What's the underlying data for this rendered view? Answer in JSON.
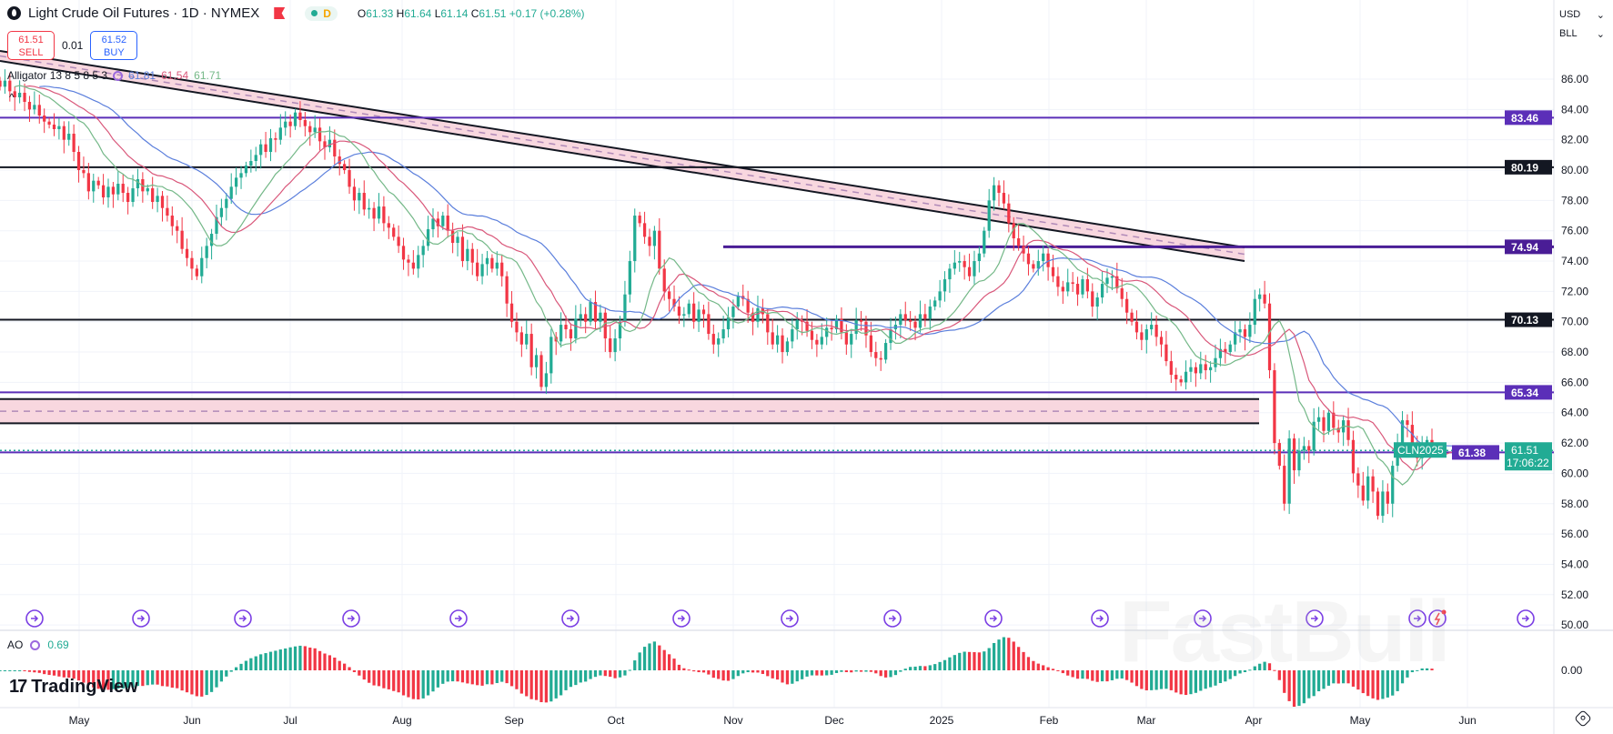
{
  "header": {
    "title": "Light Crude Oil Futures · 1D · NYMEX",
    "session_letter": "D",
    "ohlc": {
      "o_label": "O",
      "o": "61.33",
      "h_label": "H",
      "h": "61.64",
      "l_label": "L",
      "l": "61.14",
      "c_label": "C",
      "c": "61.51",
      "change": "+0.17 (+0.28%)"
    }
  },
  "trade": {
    "sell_price": "61.51",
    "sell_label": "SELL",
    "spread": "0.01",
    "buy_price": "61.52",
    "buy_label": "BUY"
  },
  "indicator": {
    "name": "Alligator 13 8 5 8 5 3",
    "jaw": "61.81",
    "teeth": "61.54",
    "lips": "61.71",
    "collapse_icon": "^"
  },
  "ao": {
    "name": "AO",
    "value": "0.69",
    "zero_label": "0.00"
  },
  "currency": {
    "currency": "USD",
    "unit": "BLL"
  },
  "branding": {
    "logo": "TradingView",
    "watermark": "FastBull"
  },
  "colors": {
    "up": "#22ab94",
    "down": "#f23645",
    "jaw": "#5b7fdc",
    "teeth": "#d9577a",
    "lips": "#74b888",
    "purple": "#4a1d96",
    "black": "#131722",
    "zone": "#f8d7df"
  },
  "chart_data": {
    "type": "candlestick",
    "symbol": "CLN2025",
    "ylim": [
      49,
      87
    ],
    "price_ticks": [
      "86.00",
      "84.00",
      "82.00",
      "80.00",
      "78.00",
      "76.00",
      "74.00",
      "72.00",
      "70.00",
      "68.00",
      "66.00",
      "64.00",
      "62.00",
      "60.00",
      "58.00",
      "56.00",
      "54.00",
      "52.00",
      "50.00"
    ],
    "x_tick_labels": [
      "May",
      "Jun",
      "Jul",
      "Aug",
      "Sep",
      "Oct",
      "Nov",
      "Dec",
      "2025",
      "Feb",
      "Mar",
      "Apr",
      "May",
      "Jun"
    ],
    "closes": [
      85.5,
      85.9,
      85.2,
      84.8,
      85.1,
      84.5,
      84.0,
      84.3,
      83.6,
      83.2,
      83.0,
      82.7,
      82.9,
      82.0,
      82.4,
      81.2,
      80.0,
      79.8,
      78.6,
      79.3,
      79.0,
      78.2,
      78.9,
      78.4,
      79.1,
      78.5,
      77.9,
      78.8,
      79.4,
      78.6,
      78.8,
      77.9,
      78.3,
      77.5,
      77.0,
      76.3,
      76.0,
      74.8,
      74.2,
      73.5,
      73.0,
      74.2,
      75.0,
      75.8,
      76.9,
      77.5,
      78.1,
      78.9,
      79.5,
      79.8,
      80.3,
      80.6,
      81.0,
      81.7,
      81.2,
      82.1,
      82.0,
      82.8,
      83.2,
      82.9,
      83.8,
      83.3,
      82.9,
      82.5,
      82.8,
      81.9,
      81.5,
      82.0,
      80.9,
      80.4,
      80.0,
      78.9,
      78.0,
      78.5,
      77.4,
      77.5,
      76.8,
      77.6,
      76.5,
      76.2,
      75.6,
      75.0,
      74.1,
      73.9,
      73.5,
      74.4,
      75.0,
      76.1,
      76.8,
      76.3,
      77.0,
      76.0,
      75.2,
      75.6,
      74.0,
      74.8,
      73.9,
      73.0,
      73.8,
      74.2,
      73.5,
      73.9,
      73.0,
      71.2,
      70.0,
      69.3,
      68.5,
      69.2,
      67.0,
      67.8,
      65.7,
      66.6,
      69.0,
      68.7,
      69.8,
      69.5,
      68.9,
      70.2,
      70.5,
      70.0,
      71.3,
      70.0,
      70.6,
      68.9,
      68.0,
      68.9,
      70.0,
      71.8,
      74.0,
      77.0,
      76.5,
      75.6,
      75.0,
      76.0,
      73.5,
      72.0,
      71.5,
      71.0,
      70.4,
      70.5,
      71.2,
      70.0,
      70.8,
      70.5,
      69.2,
      68.5,
      68.9,
      69.5,
      70.3,
      71.0,
      71.7,
      71.5,
      70.6,
      70.0,
      70.9,
      70.5,
      69.3,
      68.5,
      69.1,
      68.0,
      68.7,
      69.5,
      70.1,
      70.0,
      69.4,
      68.8,
      68.5,
      69.0,
      69.6,
      69.5,
      70.2,
      69.3,
      68.5,
      69.2,
      70.1,
      70.0,
      69.1,
      68.0,
      67.6,
      67.5,
      68.6,
      69.5,
      69.8,
      70.5,
      70.1,
      70.0,
      69.6,
      70.5,
      70.2,
      71.0,
      71.4,
      72.0,
      72.8,
      73.5,
      73.9,
      74.0,
      73.6,
      73.0,
      74.0,
      74.5,
      76.0,
      78.0,
      79.0,
      78.5,
      77.8,
      76.5,
      75.5,
      75.0,
      74.5,
      73.8,
      73.5,
      74.0,
      74.5,
      73.6,
      73.0,
      72.3,
      72.0,
      72.6,
      72.5,
      71.8,
      72.8,
      72.0,
      71.0,
      71.6,
      72.5,
      72.9,
      73.0,
      72.2,
      71.5,
      70.6,
      70.0,
      69.3,
      68.8,
      69.5,
      69.8,
      69.0,
      68.5,
      67.4,
      66.5,
      66.2,
      66.0,
      66.7,
      67.0,
      66.6,
      67.2,
      66.8,
      67.0,
      67.6,
      68.2,
      68.0,
      68.5,
      69.3,
      69.5,
      69.0,
      69.8,
      71.5,
      71.8,
      71.2,
      66.8,
      62.0,
      60.5,
      58.0,
      62.3,
      60.2,
      61.5,
      61.8,
      61.5,
      63.4,
      63.7,
      62.8,
      64.0,
      63.0,
      62.7,
      63.5,
      62.2,
      60.0,
      59.2,
      58.2,
      59.8,
      58.8,
      57.2,
      58.8,
      58.0,
      60.5,
      61.8,
      63.5,
      63.2,
      61.8,
      61.0,
      62.0,
      62.2,
      61.51
    ],
    "levels": [
      {
        "price": 83.46,
        "label": "83.46",
        "color": "#5b2fb8",
        "kind": "line"
      },
      {
        "price": 80.19,
        "label": "80.19",
        "color": "#131722",
        "kind": "line"
      },
      {
        "price": 74.94,
        "label": "74.94",
        "color": "#4a1d96",
        "kind": "line"
      },
      {
        "price": 70.13,
        "label": "70.13",
        "color": "#131722",
        "kind": "line"
      },
      {
        "price": 65.34,
        "label": "65.34",
        "color": "#5b2fb8",
        "kind": "line"
      },
      {
        "price": 61.38,
        "label": "61.38",
        "color": "#5b2fb8",
        "kind": "line"
      }
    ],
    "zone": {
      "top": 64.9,
      "bottom": 63.3
    },
    "last_price": {
      "value": "61.51",
      "countdown": "17:06:22",
      "symbol": "CLN2025"
    }
  }
}
